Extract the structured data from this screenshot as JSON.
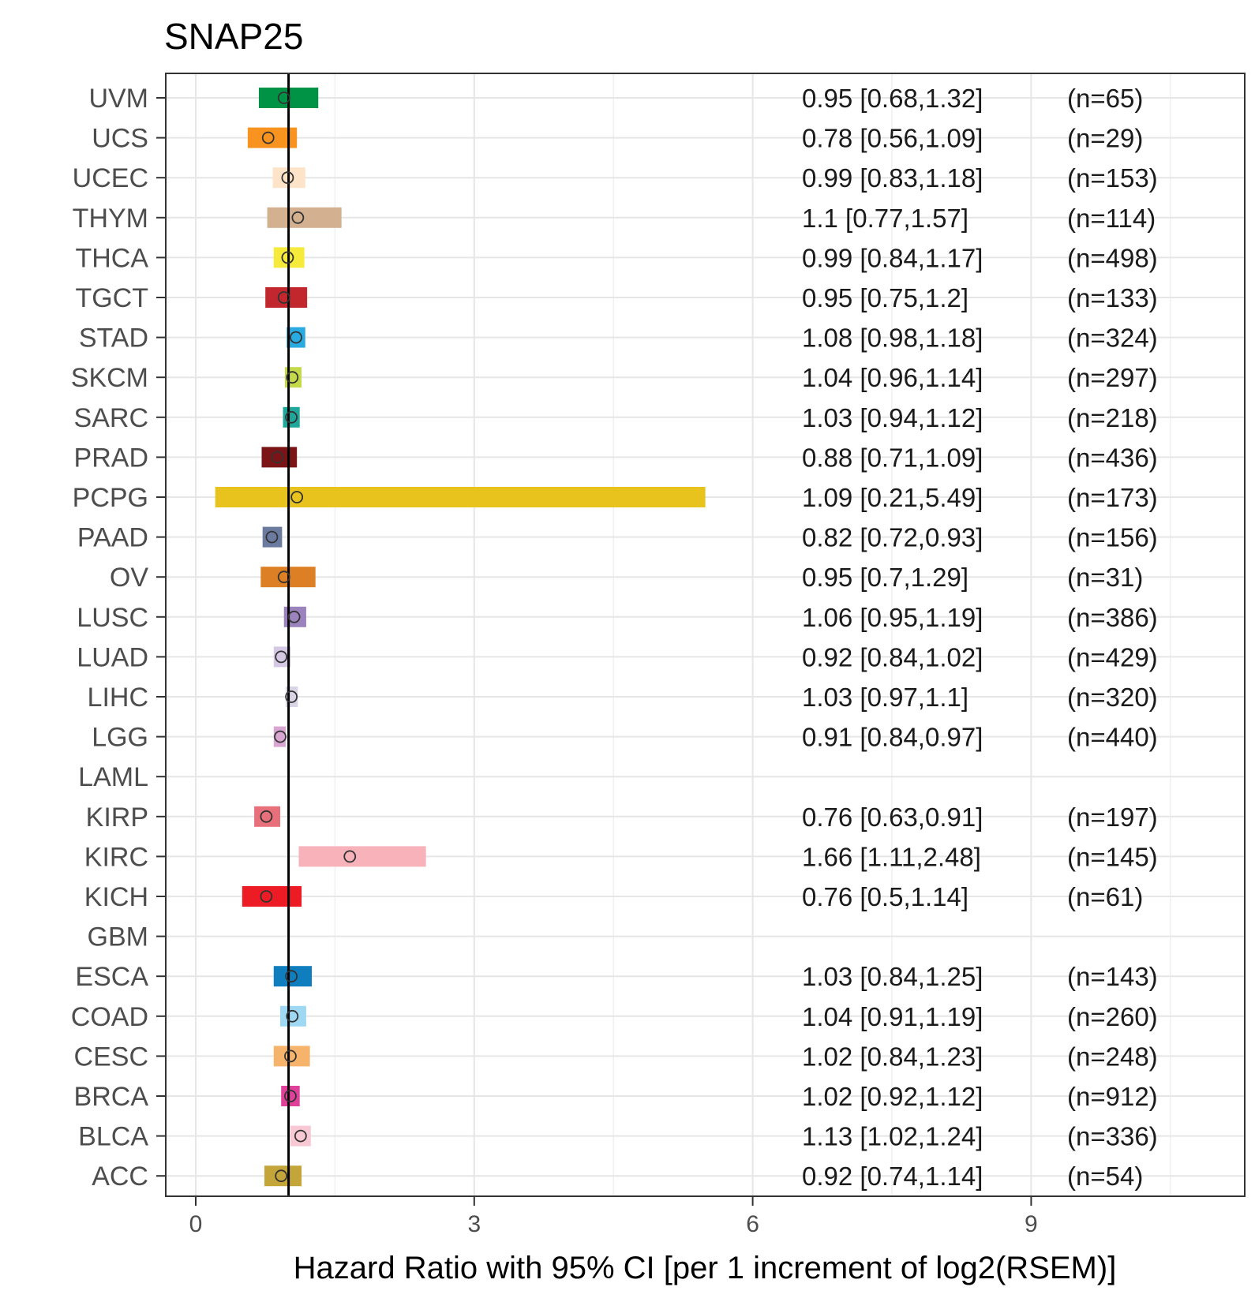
{
  "chart_data": {
    "type": "forest",
    "title": "SNAP25",
    "xlabel": "Hazard Ratio with 95% CI [per 1 increment of log2(RSEM)]",
    "xlim": [
      -0.4,
      11.4
    ],
    "xticks": [
      0,
      3,
      6,
      9
    ],
    "xtick_labels": [
      "0",
      "3",
      "6",
      "9"
    ],
    "reference_line": 1,
    "grid": true,
    "rows": [
      {
        "label": "UVM",
        "hr": 0.95,
        "lo": 0.68,
        "hi": 1.32,
        "ci_text": "0.95 [0.68,1.32]",
        "n_text": "(n=65)",
        "color": "#009245"
      },
      {
        "label": "UCS",
        "hr": 0.78,
        "lo": 0.56,
        "hi": 1.09,
        "ci_text": "0.78 [0.56,1.09]",
        "n_text": "(n=29)",
        "color": "#f7931e"
      },
      {
        "label": "UCEC",
        "hr": 0.99,
        "lo": 0.83,
        "hi": 1.18,
        "ci_text": "0.99 [0.83,1.18]",
        "n_text": "(n=153)",
        "color": "#fde3c8"
      },
      {
        "label": "THYM",
        "hr": 1.1,
        "lo": 0.77,
        "hi": 1.57,
        "ci_text": "1.1 [0.77,1.57]",
        "n_text": "(n=114)",
        "color": "#d2b090"
      },
      {
        "label": "THCA",
        "hr": 0.99,
        "lo": 0.84,
        "hi": 1.17,
        "ci_text": "0.99 [0.84,1.17]",
        "n_text": "(n=498)",
        "color": "#f6ea3a"
      },
      {
        "label": "TGCT",
        "hr": 0.95,
        "lo": 0.75,
        "hi": 1.2,
        "ci_text": "0.95 [0.75,1.2]",
        "n_text": "(n=133)",
        "color": "#c1272d"
      },
      {
        "label": "STAD",
        "hr": 1.08,
        "lo": 0.98,
        "hi": 1.18,
        "ci_text": "1.08 [0.98,1.18]",
        "n_text": "(n=324)",
        "color": "#29abe2"
      },
      {
        "label": "SKCM",
        "hr": 1.04,
        "lo": 0.96,
        "hi": 1.14,
        "ci_text": "1.04 [0.96,1.14]",
        "n_text": "(n=297)",
        "color": "#c6d94a"
      },
      {
        "label": "SARC",
        "hr": 1.03,
        "lo": 0.94,
        "hi": 1.12,
        "ci_text": "1.03 [0.94,1.12]",
        "n_text": "(n=218)",
        "color": "#1fa89a"
      },
      {
        "label": "PRAD",
        "hr": 0.88,
        "lo": 0.71,
        "hi": 1.09,
        "ci_text": "0.88 [0.71,1.09]",
        "n_text": "(n=436)",
        "color": "#7b1416"
      },
      {
        "label": "PCPG",
        "hr": 1.09,
        "lo": 0.21,
        "hi": 5.49,
        "ci_text": "1.09 [0.21,5.49]",
        "n_text": "(n=173)",
        "color": "#e8c31e"
      },
      {
        "label": "PAAD",
        "hr": 0.82,
        "lo": 0.72,
        "hi": 0.93,
        "ci_text": "0.82 [0.72,0.93]",
        "n_text": "(n=156)",
        "color": "#6b7a9f"
      },
      {
        "label": "OV",
        "hr": 0.95,
        "lo": 0.7,
        "hi": 1.29,
        "ci_text": "0.95 [0.7,1.29]",
        "n_text": "(n=31)",
        "color": "#dd7f25"
      },
      {
        "label": "LUSC",
        "hr": 1.06,
        "lo": 0.95,
        "hi": 1.19,
        "ci_text": "1.06 [0.95,1.19]",
        "n_text": "(n=386)",
        "color": "#9b84bd"
      },
      {
        "label": "LUAD",
        "hr": 0.92,
        "lo": 0.84,
        "hi": 1.02,
        "ci_text": "0.92 [0.84,1.02]",
        "n_text": "(n=429)",
        "color": "#d5c8e4"
      },
      {
        "label": "LIHC",
        "hr": 1.03,
        "lo": 0.97,
        "hi": 1.1,
        "ci_text": "1.03 [0.97,1.1]",
        "n_text": "(n=320)",
        "color": "#d9d4e6"
      },
      {
        "label": "LGG",
        "hr": 0.91,
        "lo": 0.84,
        "hi": 0.97,
        "ci_text": "0.91 [0.84,0.97]",
        "n_text": "(n=440)",
        "color": "#d8a6d0"
      },
      {
        "label": "LAML",
        "hr": null,
        "lo": null,
        "hi": null,
        "ci_text": "",
        "n_text": "",
        "color": "#cccccc"
      },
      {
        "label": "KIRP",
        "hr": 0.76,
        "lo": 0.63,
        "hi": 0.91,
        "ci_text": "0.76 [0.63,0.91]",
        "n_text": "(n=197)",
        "color": "#e8707a"
      },
      {
        "label": "KIRC",
        "hr": 1.66,
        "lo": 1.11,
        "hi": 2.48,
        "ci_text": "1.66 [1.11,2.48]",
        "n_text": "(n=145)",
        "color": "#f7b2ba"
      },
      {
        "label": "KICH",
        "hr": 0.76,
        "lo": 0.5,
        "hi": 1.14,
        "ci_text": "0.76 [0.5,1.14]",
        "n_text": "(n=61)",
        "color": "#ed1c24"
      },
      {
        "label": "GBM",
        "hr": null,
        "lo": null,
        "hi": null,
        "ci_text": "",
        "n_text": "",
        "color": "#cccccc"
      },
      {
        "label": "ESCA",
        "hr": 1.03,
        "lo": 0.84,
        "hi": 1.25,
        "ci_text": "1.03 [0.84,1.25]",
        "n_text": "(n=143)",
        "color": "#0f7ebf"
      },
      {
        "label": "COAD",
        "hr": 1.04,
        "lo": 0.91,
        "hi": 1.19,
        "ci_text": "1.04 [0.91,1.19]",
        "n_text": "(n=260)",
        "color": "#9fd8f2"
      },
      {
        "label": "CESC",
        "hr": 1.02,
        "lo": 0.84,
        "hi": 1.23,
        "ci_text": "1.02 [0.84,1.23]",
        "n_text": "(n=248)",
        "color": "#f6b36b"
      },
      {
        "label": "BRCA",
        "hr": 1.02,
        "lo": 0.92,
        "hi": 1.12,
        "ci_text": "1.02 [0.92,1.12]",
        "n_text": "(n=912)",
        "color": "#e0409a"
      },
      {
        "label": "BLCA",
        "hr": 1.13,
        "lo": 1.02,
        "hi": 1.24,
        "ci_text": "1.13 [1.02,1.24]",
        "n_text": "(n=336)",
        "color": "#f8c9d5"
      },
      {
        "label": "ACC",
        "hr": 0.92,
        "lo": 0.74,
        "hi": 1.14,
        "ci_text": "0.92 [0.74,1.14]",
        "n_text": "(n=54)",
        "color": "#c3a53a"
      }
    ]
  }
}
